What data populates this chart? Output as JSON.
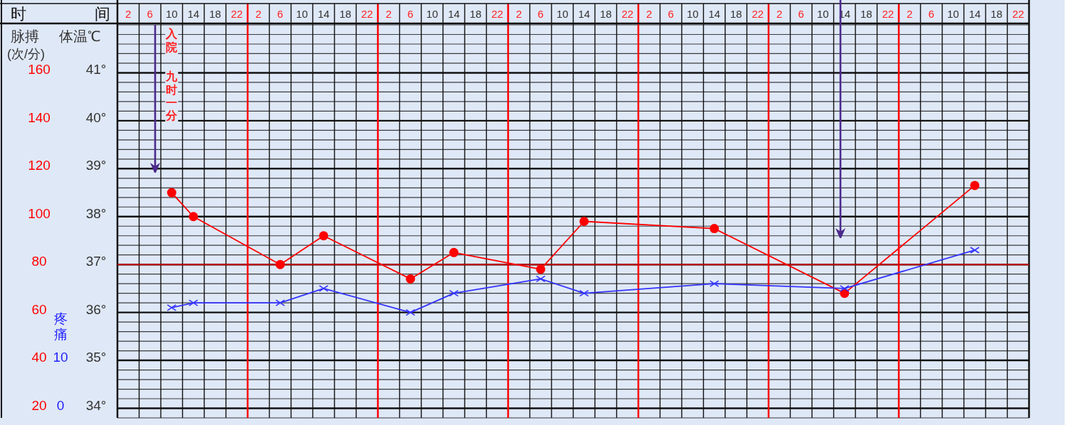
{
  "chart_data": {
    "type": "line",
    "xlabel": "时间",
    "ylabel": "体温℃",
    "y2label": "脉搏",
    "y3label": "疼痛",
    "annotations": [
      "(次/分)",
      "入院",
      "九时一分"
    ],
    "categories": [
      "2",
      "6",
      "10",
      "14",
      "18",
      "22",
      "2",
      "6",
      "10",
      "14",
      "18",
      "22",
      "2",
      "6",
      "10",
      "14",
      "18",
      "22",
      "2",
      "6",
      "10",
      "14",
      "18",
      "22",
      "2",
      "6",
      "10",
      "14",
      "18",
      "22",
      "2",
      "6",
      "10",
      "14",
      "18",
      "22",
      "2",
      "6",
      "10",
      "14",
      "18",
      "22"
    ],
    "ylim": [
      33.8,
      42
    ],
    "yticks": [
      {
        "value": 34,
        "label": "34°"
      },
      {
        "value": 35,
        "label": "35°"
      },
      {
        "value": 36,
        "label": "36°"
      },
      {
        "value": 37,
        "label": "37°"
      },
      {
        "value": 38,
        "label": "38°"
      },
      {
        "value": 39,
        "label": "39°"
      },
      {
        "value": 40,
        "label": "40°"
      },
      {
        "value": 41,
        "label": "41°"
      }
    ],
    "y2lim": [
      16,
      180
    ],
    "y2ticks": [
      20,
      40,
      60,
      80,
      100,
      120,
      140,
      160
    ],
    "y3lim": [
      -2,
      80
    ],
    "y3ticks": [
      0,
      10
    ],
    "grid": true,
    "ref_lines": [
      {
        "axis": "y",
        "value": 37,
        "color": "#cc0000"
      }
    ],
    "series": [
      {
        "color": "#ff0000",
        "axis": "y2",
        "marker": "circle",
        "values": [
          null,
          null,
          110,
          100,
          null,
          null,
          null,
          80,
          null,
          92,
          null,
          null,
          null,
          74,
          null,
          85,
          null,
          null,
          null,
          78,
          null,
          98,
          null,
          null,
          null,
          null,
          null,
          95,
          null,
          null,
          null,
          null,
          null,
          68,
          null,
          null,
          null,
          null,
          null,
          113,
          null,
          null
        ]
      },
      {
        "color": "#3333ff",
        "marker": "cross",
        "values": [
          null,
          null,
          36.1,
          36.2,
          null,
          null,
          null,
          36.2,
          null,
          36.5,
          null,
          null,
          null,
          36.0,
          null,
          36.4,
          null,
          null,
          null,
          36.7,
          null,
          36.4,
          null,
          null,
          null,
          null,
          null,
          36.6,
          null,
          null,
          null,
          null,
          null,
          36.5,
          null,
          null,
          null,
          null,
          null,
          37.3,
          null,
          null
        ]
      }
    ]
  }
}
